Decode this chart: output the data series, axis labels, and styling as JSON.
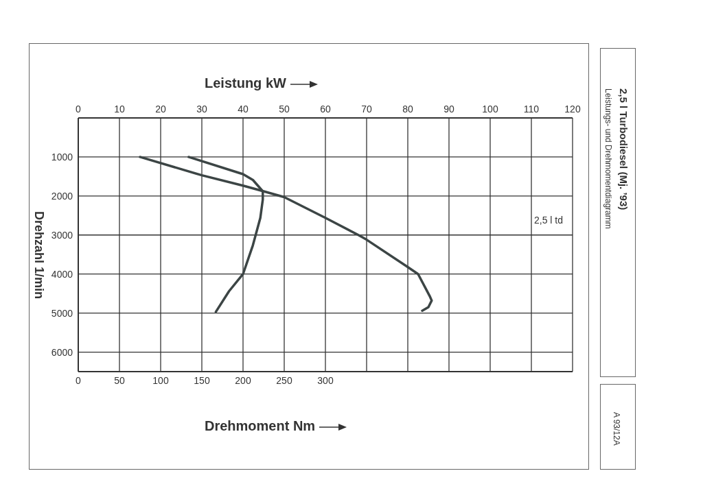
{
  "chart_data": {
    "type": "line",
    "title": "2,5 l Turbodiesel (Mj. ’93)",
    "subtitle": "Leistungs- und Drehmomentdiagramm",
    "xlabel": "Drehmoment Nm",
    "x2label": "Leistung kW",
    "ylabel": "Drehzahl 1/min",
    "annotations": [
      "2,5 l td",
      "A 93/12A"
    ],
    "xlim": [
      0,
      600
    ],
    "xticks": [
      0,
      50,
      100,
      150,
      200,
      250,
      300
    ],
    "x2lim": [
      0,
      120
    ],
    "x2ticks": [
      0,
      10,
      20,
      30,
      40,
      50,
      60,
      70,
      80,
      90,
      100,
      110,
      120
    ],
    "ylim": [
      6500,
      0
    ],
    "yticks": [
      1000,
      2000,
      3000,
      4000,
      5000,
      6000
    ],
    "series": [
      {
        "color": "#3c4545",
        "axis": "x2",
        "x": [
          15,
          30,
          40,
          45,
          50,
          60,
          68,
          70,
          80,
          82.5,
          85.3,
          85.8,
          85,
          83.5
        ],
        "values": [
          1000,
          1470,
          1735,
          1880,
          2030,
          2560,
          3000,
          3120,
          3820,
          4000,
          4560,
          4680,
          4850,
          4940
        ]
      },
      {
        "color": "#3c4545",
        "x": [
          134,
          200,
          212,
          224,
          224,
          221,
          212,
          200,
          183,
          167
        ],
        "values": [
          1000,
          1440,
          1590,
          1880,
          2090,
          2560,
          3260,
          4000,
          4440,
          4970
        ]
      }
    ],
    "grid": true,
    "marker": "none",
    "line_style": "solid"
  }
}
